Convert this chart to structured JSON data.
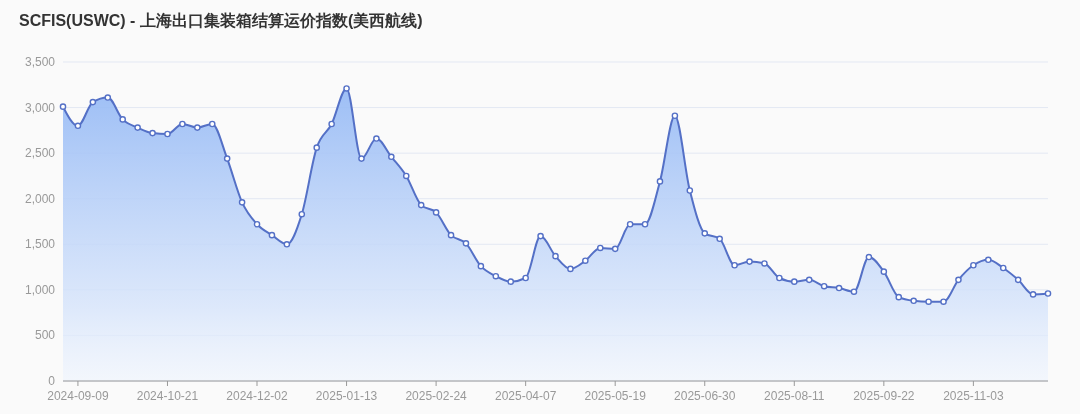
{
  "chart_data": {
    "type": "area",
    "title": "SCFIS(USWC) - 上海出口集装箱结算运价指数(美西航线)",
    "x": [
      "2024-09-02",
      "2024-09-09",
      "2024-09-16",
      "2024-09-23",
      "2024-09-30",
      "2024-10-07",
      "2024-10-14",
      "2024-10-21",
      "2024-10-28",
      "2024-11-04",
      "2024-11-11",
      "2024-11-18",
      "2024-11-25",
      "2024-12-02",
      "2024-12-09",
      "2024-12-16",
      "2024-12-23",
      "2024-12-30",
      "2025-01-06",
      "2025-01-13",
      "2025-01-20",
      "2025-01-27",
      "2025-02-03",
      "2025-02-10",
      "2025-02-17",
      "2025-02-24",
      "2025-03-03",
      "2025-03-10",
      "2025-03-17",
      "2025-03-24",
      "2025-03-31",
      "2025-04-07",
      "2025-04-14",
      "2025-04-21",
      "2025-04-28",
      "2025-05-05",
      "2025-05-12",
      "2025-05-19",
      "2025-05-26",
      "2025-06-02",
      "2025-06-09",
      "2025-06-16",
      "2025-06-23",
      "2025-06-30",
      "2025-07-07",
      "2025-07-14",
      "2025-07-21",
      "2025-07-28",
      "2025-08-04",
      "2025-08-11",
      "2025-08-18",
      "2025-08-25",
      "2025-09-01",
      "2025-09-08",
      "2025-09-15",
      "2025-09-22",
      "2025-09-29",
      "2025-10-06",
      "2025-10-13",
      "2025-10-20",
      "2025-10-27",
      "2025-11-03",
      "2025-11-10",
      "2025-11-17",
      "2025-11-24",
      "2025-12-01",
      "2025-12-08"
    ],
    "series": [
      {
        "color": "#5470c6",
        "values": [
          3010,
          2800,
          3060,
          3110,
          2870,
          2780,
          2720,
          2710,
          2820,
          2780,
          2820,
          2440,
          1960,
          1720,
          1600,
          1500,
          1830,
          2560,
          2820,
          3210,
          2440,
          2660,
          2460,
          2250,
          1930,
          1850,
          1600,
          1510,
          1260,
          1150,
          1090,
          1130,
          1590,
          1370,
          1230,
          1320,
          1460,
          1450,
          1720,
          1720,
          2190,
          2910,
          2090,
          1620,
          1560,
          1270,
          1310,
          1290,
          1130,
          1090,
          1110,
          1040,
          1020,
          980,
          1360,
          1200,
          920,
          880,
          870,
          870,
          1110,
          1270,
          1330,
          1240,
          1110,
          950,
          960
        ]
      }
    ],
    "xlim": [
      "2024-09-02",
      "2025-12-08"
    ],
    "xticks": [
      "2024-09-09",
      "2024-10-21",
      "2024-12-02",
      "2025-01-13",
      "2025-02-24",
      "2025-04-07",
      "2025-05-19",
      "2025-06-30",
      "2025-08-11",
      "2025-09-22",
      "2025-11-03"
    ],
    "ylim": [
      0,
      3500
    ],
    "yticks": [
      0,
      500,
      {
        "value": 1000,
        "label": "1,000"
      },
      {
        "value": 1500,
        "label": "1,500"
      },
      {
        "value": 2000,
        "label": "2,000"
      },
      {
        "value": 2500,
        "label": "2,500"
      },
      {
        "value": 3000,
        "label": "3,000"
      },
      {
        "value": 3500,
        "label": "3,500"
      }
    ],
    "grid": "y",
    "marker": "circle"
  }
}
